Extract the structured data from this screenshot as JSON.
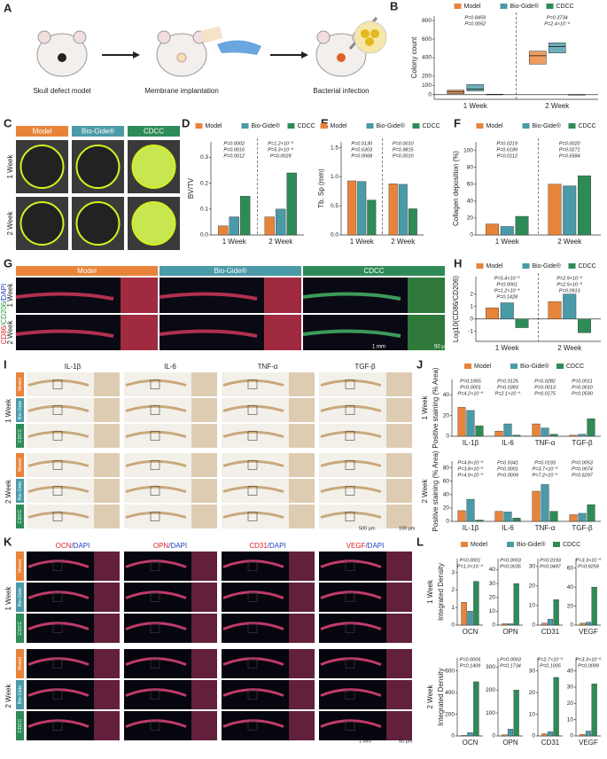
{
  "figure": {
    "panel_labels": [
      "A",
      "B",
      "C",
      "D",
      "E",
      "F",
      "G",
      "H",
      "I",
      "J",
      "K",
      "L"
    ],
    "scheme": {
      "steps": [
        "Skull defect model",
        "Membrane implantation",
        "Bacterial infection"
      ]
    },
    "panel_c": {
      "columns": [
        "Model",
        "Bio-Gide®",
        "CDCC"
      ],
      "rows": [
        "1 Week",
        "2 Week"
      ]
    },
    "panel_g": {
      "columns": [
        "Model",
        "Bio-Gide®",
        "CDCC"
      ],
      "rows": [
        "1 Week",
        "2 Week"
      ],
      "stain_parts": [
        "CD86",
        "/CD206",
        "/DAPI"
      ],
      "scale_bars": [
        "1 mm",
        "50 μm"
      ]
    },
    "panel_i": {
      "columns": [
        "IL-1β",
        "IL-6",
        "TNF-α",
        "TGF-β"
      ],
      "rows": [
        "1 Week",
        "2 Week"
      ],
      "groups": [
        "Model",
        "Bio-Gide",
        "CDCC"
      ],
      "scale_bars": [
        "500 μm",
        "100 μm"
      ]
    },
    "panel_k": {
      "columns": [
        [
          "OCN",
          "/DAPI"
        ],
        [
          "OPN",
          "/DAPI"
        ],
        [
          "CD31",
          "/DAPI"
        ],
        [
          "VEGF",
          "/DAPI"
        ]
      ],
      "rows": [
        "1 Week",
        "2 Week"
      ],
      "groups": [
        "Model",
        "Bio-Gide",
        "CDCC"
      ],
      "scale_bars": [
        "1 mm",
        "50 μm"
      ]
    }
  },
  "chart_data": [
    {
      "type": "box",
      "ylabel": "Colony count",
      "categories": [
        "1 Week",
        "2 Week"
      ],
      "legend": true,
      "series": [
        {
          "name": "Model",
          "color": "#e8843a",
          "values": [
            30,
            420
          ],
          "q1": [
            10,
            330
          ],
          "q3": [
            50,
            470
          ]
        },
        {
          "name": "Bio-Gide®",
          "color": "#4a9aa8",
          "values": [
            60,
            520
          ],
          "q1": [
            40,
            450
          ],
          "q3": [
            110,
            560
          ]
        },
        {
          "name": "CDCC",
          "color": "#2e8b57",
          "values": [
            0,
            0
          ],
          "q1": [
            0,
            0
          ],
          "q3": [
            5,
            0
          ]
        }
      ],
      "ylim": [
        -50,
        850
      ],
      "yticks": [
        0,
        100,
        200,
        400,
        600,
        800
      ],
      "annotations": [
        "P=0.8459",
        "P=0.0052",
        "P=0.3734",
        "P=2.4×10⁻⁶"
      ]
    },
    {
      "type": "bar",
      "ylabel": "BV/TV",
      "categories": [
        "1 Week",
        "2 Week"
      ],
      "legend": true,
      "series": [
        {
          "name": "Model",
          "color": "#e8843a",
          "values": [
            0.035,
            0.07
          ]
        },
        {
          "name": "Bio-Gide®",
          "color": "#4a9aa8",
          "values": [
            0.07,
            0.1
          ]
        },
        {
          "name": "CDCC",
          "color": "#2e8b57",
          "values": [
            0.15,
            0.24
          ]
        }
      ],
      "ylim": [
        0,
        0.36
      ],
      "yticks": [
        {
          "value": 0,
          "label": "0.0"
        },
        0.1,
        0.2,
        0.3
      ],
      "annotations": [
        "P=0.0002",
        "P=0.0016",
        "P=0.0012",
        "P=1.2×10⁻⁵",
        "P=5.3×10⁻⁶",
        "P=0.0029"
      ]
    },
    {
      "type": "bar",
      "ylabel": "Tb. Sp (mm)",
      "categories": [
        "1 Week",
        "2 Week"
      ],
      "legend": true,
      "series": [
        {
          "name": "Model",
          "color": "#e8843a",
          "values": [
            0.93,
            0.88
          ]
        },
        {
          "name": "Bio-Gide®",
          "color": "#4a9aa8",
          "values": [
            0.92,
            0.87
          ]
        },
        {
          "name": "CDCC",
          "color": "#2e8b57",
          "values": [
            0.6,
            0.45
          ]
        }
      ],
      "ylim": [
        0,
        1.6
      ],
      "yticks": [
        {
          "value": 0,
          "label": "0.0"
        },
        0.5,
        {
          "value": 1,
          "label": "1.0"
        },
        1.5
      ],
      "annotations": [
        "P=0.0130",
        "P=0.6303",
        "P=0.0068",
        "P=0.0010",
        "P=0.9815",
        "P=0.0010"
      ]
    },
    {
      "type": "bar",
      "ylabel": "Collagen deposition (%)",
      "categories": [
        "1 Week",
        "2 Week"
      ],
      "legend": true,
      "series": [
        {
          "name": "Model",
          "color": "#e8843a",
          "values": [
            13,
            60
          ]
        },
        {
          "name": "Bio-Gide®",
          "color": "#4a9aa8",
          "values": [
            10,
            58
          ]
        },
        {
          "name": "CDCC",
          "color": "#2e8b57",
          "values": [
            22,
            70
          ]
        }
      ],
      "ylim": [
        0,
        110
      ],
      "yticks": [
        0,
        20,
        40,
        60,
        80,
        100
      ],
      "annotations": [
        "P=0.0219",
        "P=0.6189",
        "P=0.0112",
        "P=0.0020",
        "P=0.0271",
        "P=0.6584"
      ]
    },
    {
      "type": "bar",
      "ylabel": "Log10(CD86/CD206)",
      "categories": [
        "1 Week",
        "2 Week"
      ],
      "legend": true,
      "series": [
        {
          "name": "Model",
          "color": "#e8843a",
          "values": [
            0.9,
            1.4
          ]
        },
        {
          "name": "Bio-Gide®",
          "color": "#4a9aa8",
          "values": [
            1.3,
            2.0
          ]
        },
        {
          "name": "CDCC",
          "color": "#2e8b57",
          "values": [
            -0.7,
            -1.1
          ]
        }
      ],
      "ylim": [
        -1.8,
        3.4
      ],
      "yticks": [
        -1,
        0,
        1,
        2
      ],
      "annotations": [
        "P=5.4×10⁻⁵",
        "P=0.0001",
        "P=1.2×10⁻⁵",
        "P=0.1428",
        "P=2.9×10⁻⁵",
        "P=2.5×10⁻⁵",
        "P=0.0913"
      ]
    },
    {
      "type": "bar",
      "row_label": "1 Week",
      "ylabel": "Positive staining (% Area)",
      "categories": [
        "IL-1β",
        "IL-6",
        "TNF-α",
        "TGF-β"
      ],
      "legend": true,
      "series": [
        {
          "name": "Model",
          "color": "#e8843a",
          "values": [
            28,
            5,
            12,
            1
          ]
        },
        {
          "name": "Bio-Gide®",
          "color": "#4a9aa8",
          "values": [
            25,
            12,
            8,
            2
          ]
        },
        {
          "name": "CDCC",
          "color": "#2e8b57",
          "values": [
            10,
            1,
            2,
            17
          ]
        }
      ],
      "ylim": [
        0,
        55
      ],
      "yticks": [
        0,
        20,
        40
      ],
      "annotations": [
        "P=0.1955",
        "P=0.0001",
        "P=4.2×10⁻⁵",
        "P=0.0125",
        "P=0.0383",
        "P=2.1×10⁻⁵",
        "P=0.0282",
        "P=0.0013",
        "P=0.0175",
        "P=0.0011",
        "P=0.0010",
        "P=0.0590"
      ]
    },
    {
      "type": "bar",
      "row_label": "2 Week",
      "ylabel": "Positive staining (% Area)",
      "categories": [
        "IL-1β",
        "IL-6",
        "TNF-α",
        "TGF-β"
      ],
      "legend": false,
      "series": [
        {
          "name": "Model",
          "color": "#e8843a",
          "values": [
            16,
            15,
            45,
            10
          ]
        },
        {
          "name": "Bio-Gide®",
          "color": "#4a9aa8",
          "values": [
            33,
            14,
            55,
            12
          ]
        },
        {
          "name": "CDCC",
          "color": "#2e8b57",
          "values": [
            2,
            5,
            15,
            25
          ]
        }
      ],
      "ylim": [
        0,
        90
      ],
      "yticks": [
        0,
        20,
        40,
        60,
        80
      ],
      "annotations": [
        "P=4.8×10⁻⁶",
        "P=3.8×10⁻⁵",
        "P=4.9×10⁻⁵",
        "P=0.9341",
        "P=0.0001",
        "P=0.0009",
        "P=0.0193",
        "P=3.7×10⁻⁵",
        "P=7.2×10⁻⁵",
        "P=0.0053",
        "P=0.0074",
        "P=0.6297"
      ]
    },
    {
      "type": "bar",
      "row_label": "1 Week",
      "ylabel": "Integrated Density",
      "categories": [
        "OCN"
      ],
      "legend": true,
      "series": [
        {
          "name": "Model",
          "color": "#e8843a",
          "values": [
            1.3
          ]
        },
        {
          "name": "Bio-Gide®",
          "color": "#4a9aa8",
          "values": [
            0.8
          ]
        },
        {
          "name": "CDCC",
          "color": "#2e8b57",
          "values": [
            2.5
          ]
        }
      ],
      "ylim": [
        0,
        3.8
      ],
      "yticks": [
        0,
        1,
        2,
        3
      ],
      "annotations": [
        "P=0.0001",
        "P=1.0×10⁻⁴"
      ]
    },
    {
      "type": "bar",
      "categories": [
        "OPN"
      ],
      "legend": false,
      "series": [
        {
          "name": "Model",
          "color": "#e8843a",
          "values": [
            1
          ]
        },
        {
          "name": "Bio-Gide®",
          "color": "#4a9aa8",
          "values": [
            1
          ]
        },
        {
          "name": "CDCC",
          "color": "#2e8b57",
          "values": [
            30
          ]
        }
      ],
      "ylim": [
        0,
        48
      ],
      "yticks": [
        0,
        10,
        20,
        30,
        40
      ],
      "annotations": [
        "P=0.0003",
        "P=0.0035"
      ]
    },
    {
      "type": "bar",
      "categories": [
        "CD31"
      ],
      "legend": false,
      "series": [
        {
          "name": "Model",
          "color": "#e8843a",
          "values": [
            1
          ]
        },
        {
          "name": "Bio-Gide®",
          "color": "#4a9aa8",
          "values": [
            3
          ]
        },
        {
          "name": "CDCC",
          "color": "#2e8b57",
          "values": [
            13
          ]
        }
      ],
      "ylim": [
        0,
        34
      ],
      "yticks": [
        0,
        10,
        20,
        30
      ],
      "annotations": [
        "P=0.0193",
        "P=0.0497"
      ]
    },
    {
      "type": "bar",
      "categories": [
        "VEGF"
      ],
      "legend": false,
      "series": [
        {
          "name": "Model",
          "color": "#e8843a",
          "values": [
            2
          ]
        },
        {
          "name": "Bio-Gide®",
          "color": "#4a9aa8",
          "values": [
            3
          ]
        },
        {
          "name": "CDCC",
          "color": "#2e8b57",
          "values": [
            40
          ]
        }
      ],
      "ylim": [
        0,
        70
      ],
      "yticks": [
        0,
        20,
        40,
        60
      ],
      "annotations": [
        "P=3.3×10⁻⁵",
        "P=0.9259"
      ]
    },
    {
      "type": "bar",
      "row_label": "2 Week",
      "ylabel": "Integrated Density",
      "categories": [
        "OCN"
      ],
      "legend": false,
      "series": [
        {
          "name": "Model",
          "color": "#e8843a",
          "values": [
            5
          ]
        },
        {
          "name": "Bio-Gide®",
          "color": "#4a9aa8",
          "values": [
            30
          ]
        },
        {
          "name": "CDCC",
          "color": "#2e8b57",
          "values": [
            500
          ]
        }
      ],
      "ylim": [
        0,
        720
      ],
      "yticks": [
        0,
        200,
        400,
        600
      ],
      "annotations": [
        "P=0.0005",
        "P=0.1409"
      ]
    },
    {
      "type": "bar",
      "categories": [
        "OPN"
      ],
      "legend": false,
      "series": [
        {
          "name": "Model",
          "color": "#e8843a",
          "values": [
            5
          ]
        },
        {
          "name": "Bio-Gide®",
          "color": "#4a9aa8",
          "values": [
            30
          ]
        },
        {
          "name": "CDCC",
          "color": "#2e8b57",
          "values": [
            200
          ]
        }
      ],
      "ylim": [
        0,
        340
      ],
      "yticks": [
        0,
        100,
        200,
        300
      ],
      "annotations": [
        "P=0.0003",
        "P=0.1734"
      ]
    },
    {
      "type": "bar",
      "categories": [
        "CD31"
      ],
      "legend": false,
      "series": [
        {
          "name": "Model",
          "color": "#e8843a",
          "values": [
            1
          ]
        },
        {
          "name": "Bio-Gide®",
          "color": "#4a9aa8",
          "values": [
            2
          ]
        },
        {
          "name": "CDCC",
          "color": "#2e8b57",
          "values": [
            27
          ]
        }
      ],
      "ylim": [
        0,
        36
      ],
      "yticks": [
        0,
        10,
        20,
        30
      ],
      "annotations": [
        "P=2.7×10⁻⁵",
        "P=0.1005"
      ]
    },
    {
      "type": "bar",
      "categories": [
        "VEGF"
      ],
      "legend": false,
      "series": [
        {
          "name": "Model",
          "color": "#e8843a",
          "values": [
            1
          ]
        },
        {
          "name": "Bio-Gide®",
          "color": "#4a9aa8",
          "values": [
            3
          ]
        },
        {
          "name": "CDCC",
          "color": "#2e8b57",
          "values": [
            32
          ]
        }
      ],
      "ylim": [
        0,
        48
      ],
      "yticks": [
        0,
        10,
        20,
        30,
        40
      ],
      "annotations": [
        "P=3.3×10⁻⁵",
        "P=0.0099"
      ]
    }
  ]
}
